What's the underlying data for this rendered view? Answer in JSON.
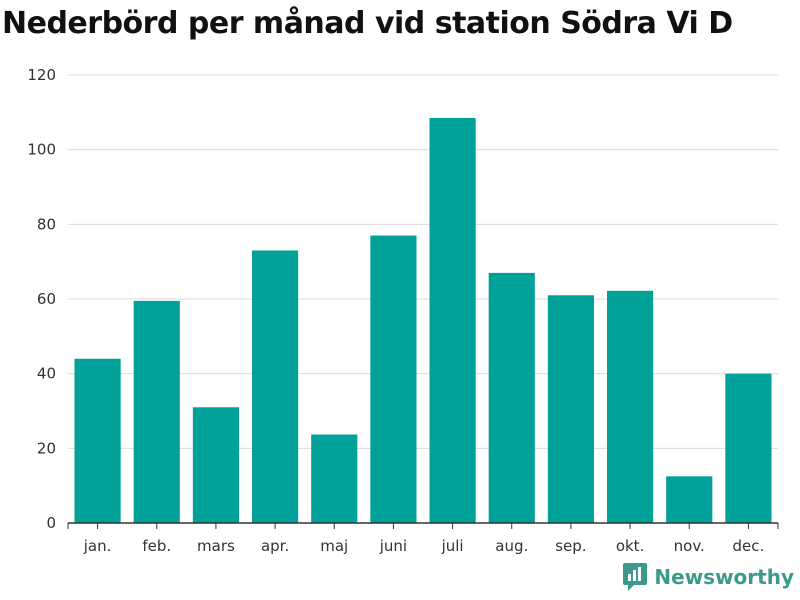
{
  "title": "Nederbörd per månad vid station Södra Vi D",
  "brand": {
    "name": "Newsworthy",
    "icon": "bar-chart-pin-icon",
    "color": "#3c9a8c"
  },
  "colors": {
    "bar": "#00a199",
    "grid": "#dcdcdc",
    "axis": "#333333"
  },
  "chart_data": {
    "type": "bar",
    "title": "Nederbörd per månad vid station Södra Vi D",
    "xlabel": "",
    "ylabel": "",
    "categories": [
      "jan.",
      "feb.",
      "mars",
      "apr.",
      "maj",
      "juni",
      "juli",
      "aug.",
      "sep.",
      "okt.",
      "nov.",
      "dec."
    ],
    "values": [
      44,
      59.5,
      31,
      73,
      23.7,
      77,
      108.5,
      67,
      61,
      62.2,
      12.5,
      40
    ],
    "ylim": [
      0,
      120
    ],
    "yticks": [
      0,
      20,
      40,
      60,
      80,
      100,
      120
    ],
    "grid": true,
    "legend": "none"
  }
}
